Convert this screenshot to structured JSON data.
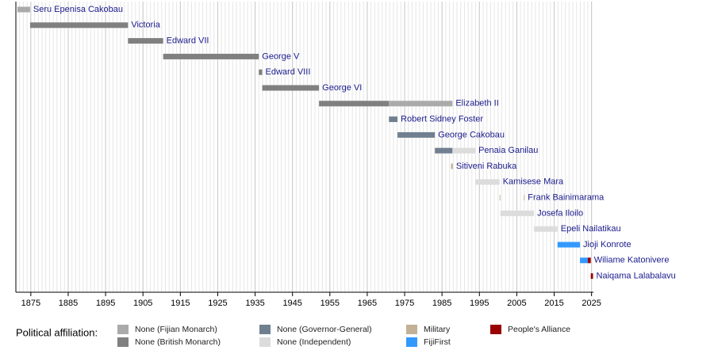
{
  "chart_data": {
    "type": "timeline",
    "xlim": [
      1871,
      2025.5
    ],
    "xticks": [
      1875,
      1885,
      1895,
      1905,
      1915,
      1925,
      1935,
      1945,
      1955,
      1965,
      1975,
      1985,
      1995,
      2005,
      2015,
      2025
    ],
    "x_minor_step": 1,
    "grid": true,
    "legend_title": "Political affiliation:",
    "legend": [
      {
        "name": "None (Fijian Monarch)",
        "color": "#aaaaaa"
      },
      {
        "name": "None (British Monarch)",
        "color": "#808080"
      },
      {
        "name": "None (Governor-General)",
        "color": "#708090"
      },
      {
        "name": "None (Independent)",
        "color": "#dcdcdc"
      },
      {
        "name": "Military",
        "color": "#c2b196"
      },
      {
        "name": "FijiFirst",
        "color": "#3399ff"
      },
      {
        "name": "People's Alliance",
        "color": "#990000"
      }
    ],
    "rows": [
      {
        "name": "Seru Epenisa Cakobau",
        "segments": [
          {
            "start": 1871.4,
            "end": 1874.8,
            "color": "#aaaaaa"
          }
        ]
      },
      {
        "name": "Victoria",
        "segments": [
          {
            "start": 1874.8,
            "end": 1901,
            "color": "#808080"
          }
        ]
      },
      {
        "name": "Edward VII",
        "segments": [
          {
            "start": 1901,
            "end": 1910.4,
            "color": "#808080"
          }
        ]
      },
      {
        "name": "George V",
        "segments": [
          {
            "start": 1910.4,
            "end": 1936,
            "color": "#808080"
          }
        ]
      },
      {
        "name": "Edward VIII",
        "segments": [
          {
            "start": 1936,
            "end": 1936.9,
            "color": "#808080"
          }
        ]
      },
      {
        "name": "George VI",
        "segments": [
          {
            "start": 1936.9,
            "end": 1952.1,
            "color": "#808080"
          }
        ]
      },
      {
        "name": "Elizabeth II",
        "segments": [
          {
            "start": 1952.1,
            "end": 1970.8,
            "color": "#808080"
          },
          {
            "start": 1970.8,
            "end": 1987.8,
            "color": "#aaaaaa"
          }
        ]
      },
      {
        "name": "Robert Sidney Foster",
        "segments": [
          {
            "start": 1970.8,
            "end": 1973.1,
            "color": "#708090"
          }
        ]
      },
      {
        "name": "George Cakobau",
        "segments": [
          {
            "start": 1973.1,
            "end": 1983.1,
            "color": "#708090"
          }
        ]
      },
      {
        "name": "Penaia Ganilau",
        "segments": [
          {
            "start": 1983.1,
            "end": 1987.8,
            "color": "#708090"
          },
          {
            "start": 1987.9,
            "end": 1993.9,
            "color": "#dcdcdc"
          }
        ]
      },
      {
        "name": "Sitiveni Rabuka",
        "segments": [
          {
            "start": 1987.4,
            "end": 1987.9,
            "color": "#c2b196"
          }
        ]
      },
      {
        "name": "Kamisese Mara",
        "segments": [
          {
            "start": 1993.9,
            "end": 2000.4,
            "color": "#dcdcdc"
          }
        ]
      },
      {
        "name": "Frank Bainimarama",
        "segments": [
          {
            "start": 2000.4,
            "end": 2000.6,
            "color": "#c2b196"
          },
          {
            "start": 2006.9,
            "end": 2007.1,
            "color": "#c2b196"
          }
        ]
      },
      {
        "name": "Josefa Iloilo",
        "segments": [
          {
            "start": 2000.6,
            "end": 2009.6,
            "color": "#dcdcdc"
          }
        ]
      },
      {
        "name": "Epeli Nailatikau",
        "segments": [
          {
            "start": 2009.6,
            "end": 2015.9,
            "color": "#dcdcdc"
          }
        ]
      },
      {
        "name": "Jioji Konrote",
        "segments": [
          {
            "start": 2015.9,
            "end": 2021.9,
            "color": "#3399ff"
          }
        ]
      },
      {
        "name": "Wiliame Katonivere",
        "segments": [
          {
            "start": 2021.9,
            "end": 2024,
            "color": "#3399ff"
          },
          {
            "start": 2024,
            "end": 2024.8,
            "color": "#990000"
          }
        ]
      },
      {
        "name": "Naiqama Lalabalavu",
        "segments": [
          {
            "start": 2024.8,
            "end": 2025.4,
            "color": "#990000"
          }
        ]
      }
    ]
  }
}
